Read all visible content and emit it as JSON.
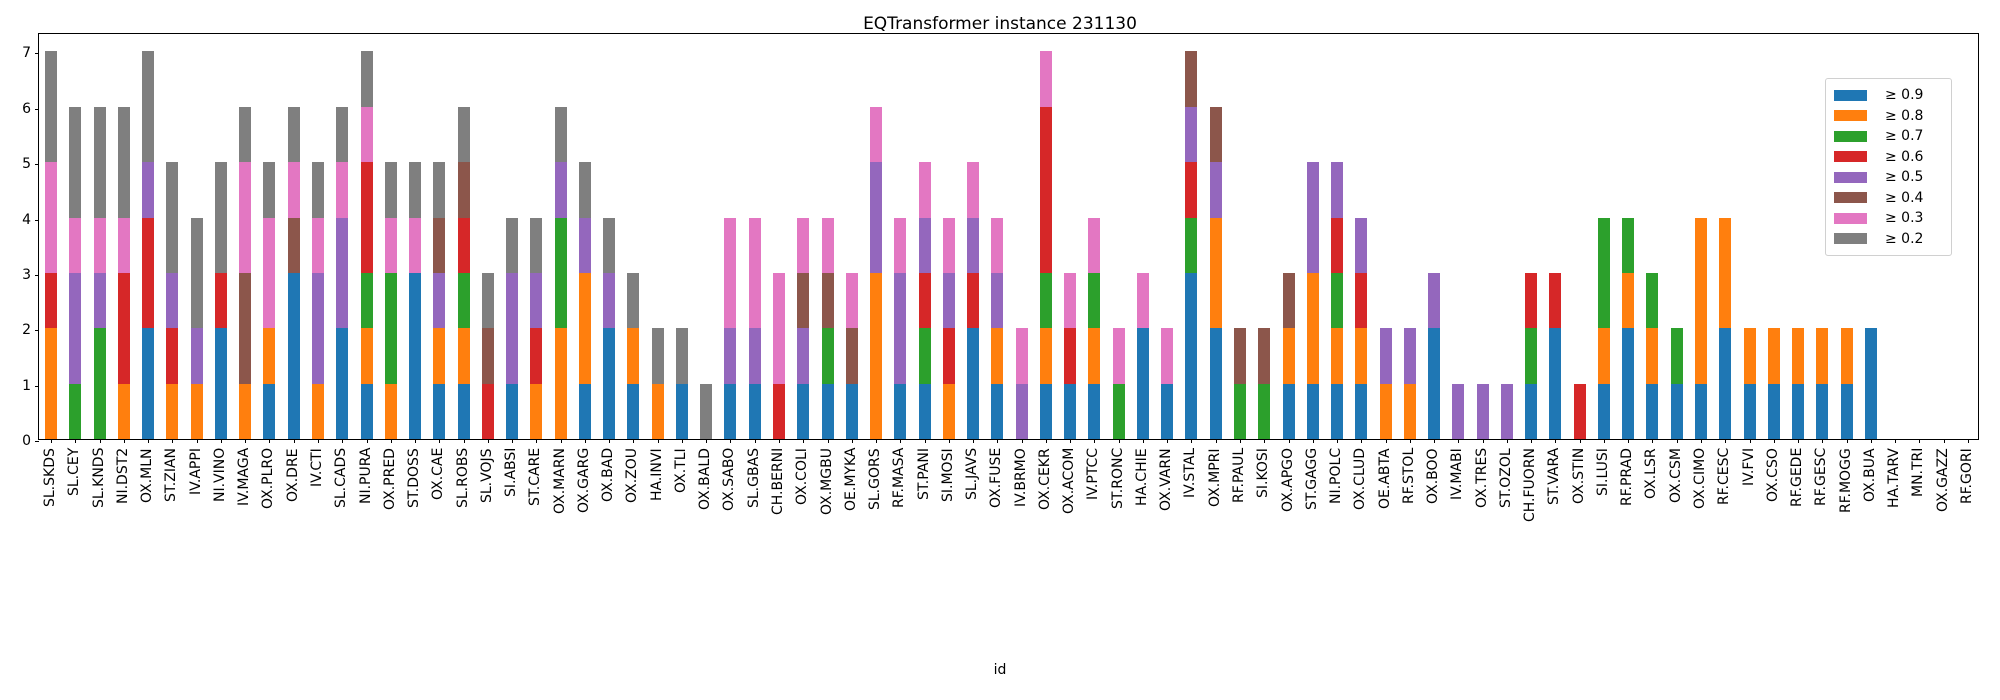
{
  "chart_data": {
    "type": "bar",
    "stacked": true,
    "title": "EQTransformer instance 231130",
    "xlabel": "id",
    "ylabel": "",
    "ylim": [
      0,
      7.35
    ],
    "yticks": [
      0,
      1,
      2,
      3,
      4,
      5,
      6,
      7
    ],
    "grid": false,
    "legend_position": "upper right",
    "categories": [
      "SL.SKDS",
      "SL.CEY",
      "SL.KNDS",
      "NI.DST2",
      "OX.MLN",
      "ST.ZIAN",
      "IV.APPI",
      "NI.VINO",
      "IV.MAGA",
      "OX.PLRO",
      "OX.DRE",
      "IV.CTI",
      "SL.CADS",
      "NI.PURA",
      "OX.PRED",
      "ST.DOSS",
      "OX.CAE",
      "SL.ROBS",
      "SL.VOJS",
      "SI.ABSI",
      "ST.CARE",
      "OX.MARN",
      "OX.GARG",
      "OX.BAD",
      "OX.ZOU",
      "HA.INVI",
      "OX.TLI",
      "OX.BALD",
      "OX.SABO",
      "SL.GBAS",
      "CH.BERNI",
      "OX.COLI",
      "OX.MGBU",
      "OE.MYKA",
      "SL.GORS",
      "RF.MASA",
      "ST.PANI",
      "SI.MOSI",
      "SL.JAVS",
      "OX.FUSE",
      "IV.BRMO",
      "OX.CEKR",
      "OX.ACOM",
      "IV.PTCC",
      "ST.RONC",
      "HA.CHIE",
      "OX.VARN",
      "IV.STAL",
      "OX.MPRI",
      "RF.PAUL",
      "SI.KOSI",
      "OX.APGO",
      "ST.GAGG",
      "NI.POLC",
      "OX.CLUD",
      "OE.ABTA",
      "RF.STOL",
      "OX.BOO",
      "IV.MABI",
      "OX.TRES",
      "ST.OZOL",
      "CH.FUORN",
      "ST.VARA",
      "OX.STIN",
      "SI.LUSI",
      "RF.PRAD",
      "OX.LSR",
      "OX.CSM",
      "OX.CIMO",
      "RF.CESC",
      "IV.FVI",
      "OX.CSO",
      "RF.GEDE",
      "RF.GESC",
      "RF.MOGG",
      "OX.BUA",
      "HA.TARV",
      "MN.TRI",
      "OX.GAZZ",
      "RF.GORI"
    ],
    "series": [
      {
        "name": "≥ 0.9",
        "color": "#1f77b4",
        "values": [
          0,
          0,
          0,
          0,
          2,
          0,
          0,
          2,
          0,
          1,
          3,
          0,
          2,
          1,
          0,
          3,
          1,
          1,
          0,
          1,
          0,
          0,
          1,
          2,
          1,
          0,
          1,
          0,
          1,
          1,
          0,
          1,
          1,
          1,
          0,
          1,
          1,
          0,
          2,
          1,
          0,
          1,
          1,
          1,
          0,
          2,
          1,
          3,
          2,
          0,
          0,
          1,
          1,
          1,
          1,
          0,
          0,
          2,
          0,
          0,
          0,
          1,
          2,
          0,
          1,
          2,
          1,
          1,
          1,
          2,
          1,
          1,
          1,
          1,
          1,
          2,
          0,
          0,
          0,
          0
        ]
      },
      {
        "name": "≥ 0.8",
        "color": "#ff7f0e",
        "values": [
          2,
          0,
          0,
          1,
          0,
          1,
          1,
          0,
          1,
          1,
          0,
          1,
          0,
          1,
          1,
          0,
          1,
          1,
          0,
          0,
          1,
          2,
          2,
          0,
          1,
          1,
          0,
          0,
          0,
          0,
          0,
          0,
          0,
          0,
          3,
          0,
          0,
          1,
          0,
          1,
          0,
          1,
          0,
          1,
          0,
          0,
          0,
          0,
          2,
          0,
          0,
          1,
          2,
          1,
          1,
          1,
          1,
          0,
          0,
          0,
          0,
          0,
          0,
          0,
          1,
          1,
          1,
          0,
          3,
          2,
          1,
          1,
          1,
          1,
          1,
          0,
          0,
          0,
          0,
          0
        ]
      },
      {
        "name": "≥ 0.7",
        "color": "#2ca02c",
        "values": [
          0,
          1,
          2,
          0,
          0,
          0,
          0,
          0,
          0,
          0,
          0,
          0,
          0,
          1,
          2,
          0,
          0,
          1,
          0,
          0,
          0,
          2,
          0,
          0,
          0,
          0,
          0,
          0,
          0,
          0,
          0,
          0,
          1,
          0,
          0,
          0,
          1,
          0,
          0,
          0,
          0,
          1,
          0,
          1,
          1,
          0,
          0,
          1,
          0,
          1,
          1,
          0,
          0,
          1,
          0,
          0,
          0,
          0,
          0,
          0,
          0,
          1,
          0,
          0,
          2,
          1,
          1,
          1,
          0,
          0,
          0,
          0,
          0,
          0,
          0,
          0,
          0,
          0,
          0,
          0
        ]
      },
      {
        "name": "≥ 0.6",
        "color": "#d62728",
        "values": [
          1,
          0,
          0,
          2,
          2,
          1,
          0,
          1,
          0,
          0,
          0,
          0,
          0,
          2,
          0,
          0,
          0,
          1,
          1,
          0,
          1,
          0,
          0,
          0,
          0,
          0,
          0,
          0,
          0,
          0,
          1,
          0,
          0,
          0,
          0,
          0,
          1,
          1,
          1,
          0,
          0,
          3,
          1,
          0,
          0,
          0,
          0,
          1,
          0,
          0,
          0,
          0,
          0,
          1,
          1,
          0,
          0,
          0,
          0,
          0,
          0,
          1,
          1,
          1,
          0,
          0,
          0,
          0,
          0,
          0,
          0,
          0,
          0,
          0,
          0,
          0,
          0,
          0,
          0,
          0
        ]
      },
      {
        "name": "≥ 0.5",
        "color": "#9467bd",
        "values": [
          0,
          2,
          1,
          0,
          1,
          1,
          1,
          0,
          0,
          0,
          0,
          2,
          2,
          0,
          0,
          0,
          1,
          0,
          0,
          2,
          1,
          1,
          1,
          1,
          0,
          0,
          0,
          0,
          1,
          1,
          0,
          1,
          0,
          0,
          2,
          2,
          1,
          1,
          1,
          1,
          1,
          0,
          0,
          0,
          0,
          0,
          0,
          1,
          1,
          0,
          0,
          0,
          2,
          1,
          1,
          1,
          1,
          1,
          1,
          1,
          1,
          0,
          0,
          0,
          0,
          0,
          0,
          0,
          0,
          0,
          0,
          0,
          0,
          0,
          0,
          0,
          0,
          0,
          0,
          0
        ]
      },
      {
        "name": "≥ 0.4",
        "color": "#8c564b",
        "values": [
          0,
          0,
          0,
          0,
          0,
          0,
          0,
          0,
          2,
          0,
          1,
          0,
          0,
          0,
          0,
          0,
          1,
          1,
          1,
          0,
          0,
          0,
          0,
          0,
          0,
          0,
          0,
          0,
          0,
          0,
          0,
          1,
          1,
          1,
          0,
          0,
          0,
          0,
          0,
          0,
          0,
          0,
          0,
          0,
          0,
          0,
          0,
          1,
          1,
          1,
          1,
          1,
          0,
          0,
          0,
          0,
          0,
          0,
          0,
          0,
          0,
          0,
          0,
          0,
          0,
          0,
          0,
          0,
          0,
          0,
          0,
          0,
          0,
          0,
          0,
          0,
          0,
          0,
          0,
          0
        ]
      },
      {
        "name": "≥ 0.3",
        "color": "#e377c2",
        "values": [
          2,
          1,
          1,
          1,
          0,
          0,
          0,
          0,
          2,
          2,
          1,
          1,
          1,
          1,
          1,
          1,
          0,
          0,
          0,
          0,
          0,
          0,
          0,
          0,
          0,
          0,
          0,
          0,
          2,
          2,
          2,
          1,
          1,
          1,
          1,
          1,
          1,
          1,
          1,
          1,
          1,
          1,
          1,
          1,
          1,
          1,
          1,
          0,
          0,
          0,
          0,
          0,
          0,
          0,
          0,
          0,
          0,
          0,
          0,
          0,
          0,
          0,
          0,
          0,
          0,
          0,
          0,
          0,
          0,
          0,
          0,
          0,
          0,
          0,
          0,
          0,
          0,
          0,
          0,
          0
        ]
      },
      {
        "name": "≥ 0.2",
        "color": "#7f7f7f",
        "values": [
          2,
          2,
          2,
          2,
          2,
          2,
          2,
          2,
          1,
          1,
          1,
          1,
          1,
          1,
          1,
          1,
          1,
          1,
          1,
          1,
          1,
          1,
          1,
          1,
          1,
          1,
          1,
          1,
          0,
          0,
          0,
          0,
          0,
          0,
          0,
          0,
          0,
          0,
          0,
          0,
          0,
          0,
          0,
          0,
          0,
          0,
          0,
          0,
          0,
          0,
          0,
          0,
          0,
          0,
          0,
          0,
          0,
          0,
          0,
          0,
          0,
          0,
          0,
          0,
          0,
          0,
          0,
          0,
          0,
          0,
          0,
          0,
          0,
          0,
          0,
          0,
          0,
          0,
          0,
          0
        ]
      }
    ]
  }
}
